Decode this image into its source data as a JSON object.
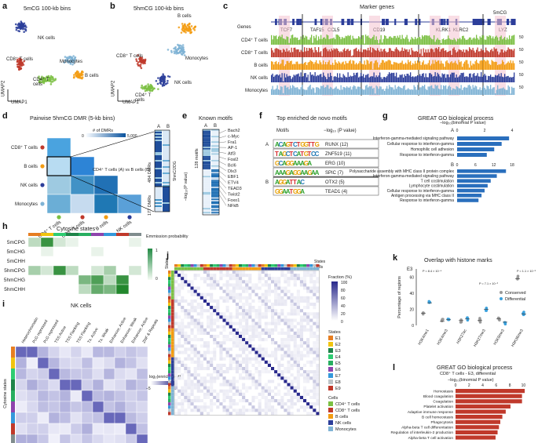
{
  "panels": {
    "a": {
      "letter": "a",
      "title": "5mCG 100-kb bins",
      "labels": [
        "NK cells",
        "CD8⁺ T cells",
        "Monocytes",
        "CD4⁺ T cells",
        "B cells"
      ],
      "xaxis": "UMAP1",
      "yaxis": "UMAP2"
    },
    "b": {
      "letter": "b",
      "title": "5hmCG 100-kb bins",
      "labels": [
        "B cells",
        "CD8⁺ T cells",
        "Monocytes",
        "NK cells",
        "CD4⁺ T cells"
      ],
      "xaxis": "UMAP1",
      "yaxis": "UMAP2"
    },
    "c": {
      "letter": "c",
      "title": "Marker genes",
      "corner": "5mCG",
      "genes_row_label": "Genes",
      "genes": [
        "TCF7",
        "TAF15",
        "CCL5",
        "CD19",
        "KLRK1",
        "KLRC2",
        "LYZ"
      ],
      "tracks": [
        "CD4⁺ T cells",
        "CD8⁺ T cells",
        "B cells",
        "NK cells",
        "Monocytes"
      ],
      "scale": [
        "50",
        "50",
        "50",
        "50",
        "50"
      ],
      "colors": [
        "#7bc043",
        "#c0392b",
        "#f39c12",
        "#2c3e9a",
        "#7fb3d5"
      ]
    },
    "d": {
      "letter": "d",
      "title": "Pairwise 5hmCG DMR (5-kb bins)",
      "legend_title": "# of DMRs",
      "legend_min": "0",
      "legend_max": "5,000",
      "rows": [
        "CD8⁺ T cells",
        "B cells",
        "NK cells",
        "Monocytes"
      ],
      "cols": [
        "CD4⁺ T cells",
        "CD8⁺ T cells",
        "B cells",
        "NK cells"
      ],
      "callout": "CD4⁺ T cells (A) vs B cells (B)",
      "ab": [
        "A",
        "B"
      ],
      "dmr_top": "484 DMRs",
      "dmr_bottom": "177 DMRs",
      "axis": "5hmC/2OG"
    },
    "e": {
      "letter": "e",
      "title": "Known motifs",
      "ab": [
        "A",
        "B"
      ],
      "count": "128 motifs",
      "axis": "−log₁₀(P value)",
      "motifs": [
        "Bach2",
        "c-Myc",
        "Fra1",
        "AP-1",
        "Atf3",
        "Fosl2",
        "Bcl6",
        "Dlx3",
        "EBF1",
        "ETV4",
        "TEAD3",
        "Twist2",
        "Foxo1",
        "NFkB"
      ]
    },
    "f": {
      "letter": "f",
      "title": "Top enriched de novo motifs",
      "col1": "Motifs",
      "col2": "−log₁₀ (P value)",
      "rows": [
        {
          "group": "A",
          "seq": "ACAGTCTGGTTG",
          "name": "RUNX (12)"
        },
        {
          "group": "",
          "seq": "TAGCTCATGTCC",
          "name": "ZNF519 (11)"
        },
        {
          "group": "",
          "seq": "GCAGGAAAGA",
          "name": "ERG (10)"
        },
        {
          "group": "",
          "seq": "AAAGAGGAAGAA",
          "name": "SPIC (7)"
        },
        {
          "group": "B",
          "seq": "AGGATTAC",
          "name": "OTX2 (5)"
        },
        {
          "group": "",
          "seq": "GGAATGGA",
          "name": "TEAD1 (4)"
        }
      ]
    },
    "g": {
      "letter": "g",
      "title": "GREAT GO biological process",
      "axis": "−log₁₀(binomial P value)",
      "A_label": "A",
      "A_ticks": [
        "0",
        "2",
        "4"
      ],
      "A_terms": [
        "Interferon-gamma-mediated signaling pathway",
        "Cellular response to interferon-gamma",
        "Homophilic cell adhesion",
        "Response to interferon-gamma"
      ],
      "A_values": [
        4.2,
        3.6,
        3.0,
        2.4
      ],
      "B_label": "B",
      "B_ticks": [
        "0",
        "6",
        "12",
        "18"
      ],
      "B_terms": [
        "Polysaccharide assembly with MHC class II protein complex",
        "Interferon-gamma-mediated signaling pathway",
        "T cell costimulation",
        "Lymphocyte costimulation",
        "Cellular response to interferon-gamma",
        "Antigen processing via MHC class II",
        "Response to interferon-gamma"
      ],
      "B_values": [
        16,
        13,
        11,
        10,
        9,
        8,
        7
      ]
    },
    "h": {
      "letter": "h",
      "title": "Cytosine states",
      "rows": [
        "5mCPG",
        "5mCHG",
        "5mCHH",
        "5hmCPG",
        "5hmCHG",
        "5hmCHH"
      ],
      "legend_title": "Emmission probability",
      "legend_min": "0",
      "legend_max": "1",
      "state_colors": [
        "#e67e22",
        "#f1c40f",
        "#2ecc71",
        "#1e8449",
        "#27ae60",
        "#8e44ad",
        "#3498db",
        "#c0392b",
        "#7f8c8d"
      ]
    },
    "i": {
      "letter": "i",
      "title": "NK cells",
      "cols": [
        "Heterochromatin",
        "PcG repressed",
        "PcG repressed",
        "TSS Active",
        "TSS Flanking",
        "TSS Flanking",
        "Tx. Active",
        "Tx. Weak",
        "Enhancer, Active",
        "Enhancer, Weak",
        "Enhancer, Active",
        "ZNF & Repeats"
      ],
      "ylabel": "Cytosine states",
      "legend": "log₂(enrichment)",
      "legend_min": "−5",
      "legend_max": "8"
    },
    "j": {
      "letter": "j",
      "corner_states": "States",
      "corner_cells": "Cells",
      "fraction": "Fraction (%)",
      "ticks": [
        "100",
        "80",
        "60",
        "40",
        "20",
        "0"
      ],
      "states_title": "States",
      "states": [
        "E1",
        "E2",
        "E3",
        "E4",
        "E5",
        "E6",
        "E7",
        "E8",
        "E9"
      ],
      "state_colors": [
        "#e67e22",
        "#f1c40f",
        "#1e8449",
        "#2ecc71",
        "#27ae60",
        "#8e44ad",
        "#3498db",
        "#bdc3c7",
        "#c0392b"
      ],
      "cells_title": "Cells",
      "cells": [
        "CD4⁺ T cells",
        "CD8⁺ T cells",
        "B cells",
        "NK cells",
        "Monocytes"
      ],
      "cell_colors": [
        "#7bc043",
        "#c0392b",
        "#f39c12",
        "#2c3e9a",
        "#7fb3d5"
      ]
    },
    "k": {
      "letter": "k",
      "title": "Overlap with histone marks",
      "sub": "E3",
      "ylabel": "Percentage of regions",
      "yticks": [
        "0",
        "20",
        "40",
        "60"
      ],
      "marks": [
        "H3K4me1",
        "H3K4me3",
        "H3K27ac",
        "H3K27me3",
        "H3K9me3",
        "H3K36me3"
      ],
      "conserved": [
        15,
        5,
        6,
        6,
        8,
        58
      ],
      "differential": [
        28,
        7,
        8,
        20,
        4,
        14
      ],
      "legend": [
        "Conserved",
        "Differential"
      ],
      "pvals": [
        "P = 8.4 × 10⁻⁴",
        "P = 7.1 × 10⁻³",
        "P = 1.1 × 10⁻⁵"
      ]
    },
    "l": {
      "letter": "l",
      "title": "GREAT GO biological process",
      "sub": "CD8⁺ T cells - E3, differential",
      "axis": "−log₁₀(binomial P value)",
      "ticks": [
        "0",
        "2",
        "4",
        "6",
        "8",
        "10"
      ],
      "terms": [
        "Hemostasis",
        "Blood coagulation",
        "Coagulation",
        "Platelet activation",
        "Adaptive immune response",
        "B cell homeostasis",
        "Phagocytosis",
        "Alpha-beta T cell differentiation",
        "Regulation of interleukin-2 production",
        "Alpha-beta T cell activation"
      ],
      "values": [
        10.2,
        9.8,
        9.8,
        8.1,
        7.4,
        6.9,
        6.6,
        6.4,
        6.2,
        5.9
      ]
    }
  }
}
